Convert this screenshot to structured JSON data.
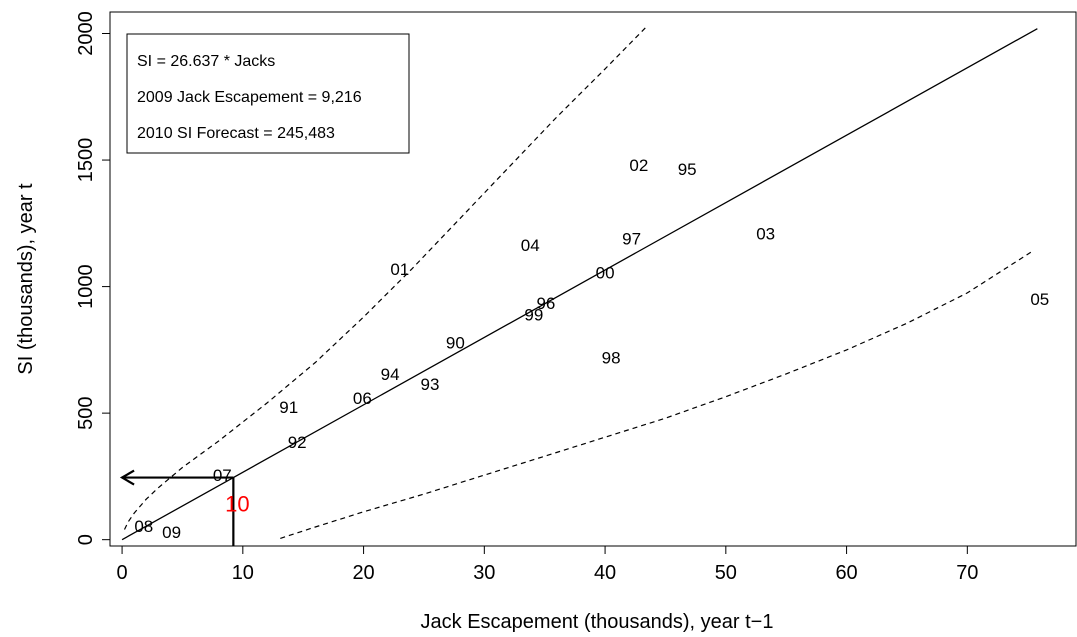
{
  "chart_data": {
    "type": "scatter",
    "xlabel": "Jack Escapement (thousands), year t−1",
    "ylabel": "SI (thousands), year t",
    "xlim": [
      -1,
      79
    ],
    "ylim": [
      -25,
      2085
    ],
    "x_ticks": [
      0,
      10,
      20,
      30,
      40,
      50,
      60,
      70
    ],
    "y_ticks": [
      0,
      500,
      1000,
      1500,
      2000
    ],
    "grid": false,
    "legend": "none",
    "legend_box": {
      "lines": [
        "SI = 26.637 * Jacks",
        "2009 Jack Escapement = 9,216",
        "2010 SI Forecast = 245,483"
      ]
    },
    "points": [
      {
        "label": "01",
        "x": 23.0,
        "y": 1070
      },
      {
        "label": "02",
        "x": 42.8,
        "y": 1480
      },
      {
        "label": "95",
        "x": 46.8,
        "y": 1465
      },
      {
        "label": "04",
        "x": 33.8,
        "y": 1165
      },
      {
        "label": "97",
        "x": 42.2,
        "y": 1190
      },
      {
        "label": "03",
        "x": 53.3,
        "y": 1210
      },
      {
        "label": "00",
        "x": 40.0,
        "y": 1055
      },
      {
        "label": "05",
        "x": 76.0,
        "y": 950
      },
      {
        "label": "96",
        "x": 35.1,
        "y": 935
      },
      {
        "label": "99",
        "x": 34.1,
        "y": 890
      },
      {
        "label": "90",
        "x": 27.6,
        "y": 780
      },
      {
        "label": "98",
        "x": 40.5,
        "y": 720
      },
      {
        "label": "94",
        "x": 22.2,
        "y": 655
      },
      {
        "label": "93",
        "x": 25.5,
        "y": 615
      },
      {
        "label": "06",
        "x": 19.9,
        "y": 560
      },
      {
        "label": "91",
        "x": 13.8,
        "y": 525
      },
      {
        "label": "92",
        "x": 14.5,
        "y": 385
      },
      {
        "label": "07",
        "x": 8.3,
        "y": 255
      },
      {
        "label": "08",
        "x": 1.8,
        "y": 55
      },
      {
        "label": "09",
        "x": 4.1,
        "y": 30
      }
    ],
    "forecast_point": {
      "label": "10",
      "x": 9.216,
      "y": 245.483,
      "color": "#ff0000"
    },
    "regression": {
      "slope": 26.637,
      "x_start": 0,
      "x_end": 75.8
    },
    "upper_bound": [
      [
        0.2,
        40
      ],
      [
        0.5,
        70
      ],
      [
        1,
        105
      ],
      [
        2,
        160
      ],
      [
        3,
        205
      ],
      [
        5,
        285
      ],
      [
        8,
        390
      ],
      [
        12,
        540
      ],
      [
        16,
        700
      ],
      [
        20,
        880
      ],
      [
        24,
        1070
      ],
      [
        28,
        1270
      ],
      [
        32,
        1470
      ],
      [
        36,
        1670
      ],
      [
        40,
        1860
      ],
      [
        43.5,
        2030
      ]
    ],
    "lower_bound": [
      [
        13.1,
        5
      ],
      [
        16,
        50
      ],
      [
        20,
        110
      ],
      [
        25,
        180
      ],
      [
        30,
        255
      ],
      [
        35,
        330
      ],
      [
        40,
        405
      ],
      [
        45,
        480
      ],
      [
        50,
        565
      ],
      [
        55,
        655
      ],
      [
        60,
        750
      ],
      [
        65,
        855
      ],
      [
        70,
        975
      ],
      [
        75.4,
        1140
      ]
    ],
    "colors": {
      "forecast": "#ff0000",
      "line": "#000000"
    }
  }
}
